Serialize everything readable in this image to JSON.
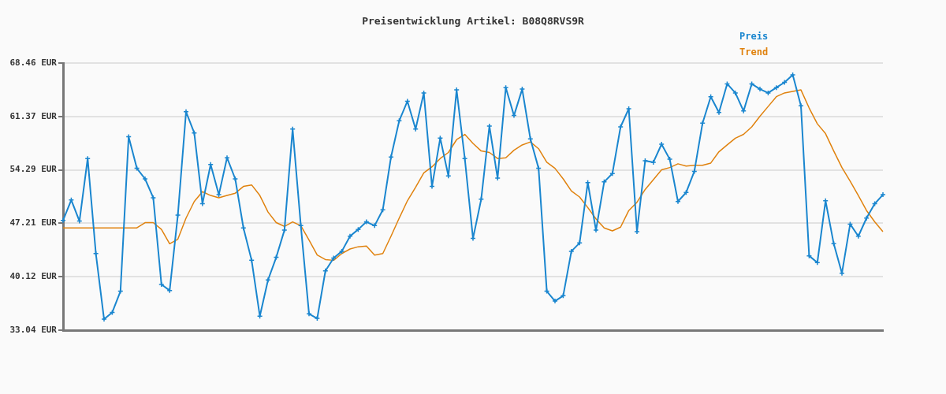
{
  "chart_data": {
    "type": "line",
    "title": "Preisentwicklung Artikel: B08Q8RVS9R",
    "categories": [
      null,
      null,
      null,
      null,
      null,
      null,
      null,
      null,
      null,
      null,
      null,
      null,
      null,
      null,
      null,
      null,
      null,
      null,
      null,
      null,
      null,
      null,
      null,
      null,
      null,
      null,
      null,
      null,
      null,
      null,
      null,
      null,
      null,
      null,
      null,
      null,
      null,
      null,
      null,
      null,
      null,
      null,
      null,
      null,
      null,
      null,
      null,
      null,
      null,
      null,
      null,
      null,
      null,
      null,
      null,
      null,
      null,
      null,
      null,
      null,
      null,
      null,
      null,
      null,
      null,
      null,
      null,
      null,
      null,
      null,
      null,
      null,
      null,
      null,
      null,
      null,
      null,
      null,
      null,
      null,
      null,
      null,
      null,
      null,
      null,
      null,
      null,
      null,
      null,
      null,
      null,
      null,
      null,
      null,
      null,
      null,
      null,
      null,
      null,
      null,
      null
    ],
    "series": [
      {
        "name": "Preis",
        "color": "#1a86cf",
        "marker": "cross",
        "values": [
          47.6,
          50.3,
          47.5,
          55.8,
          43.2,
          34.5,
          35.4,
          38.2,
          58.7,
          54.5,
          53.1,
          50.6,
          39.1,
          38.3,
          48.3,
          62.0,
          59.2,
          49.8,
          55.0,
          51.0,
          55.9,
          53.1,
          46.6,
          42.3,
          34.9,
          39.7,
          42.7,
          46.3,
          59.7,
          46.9,
          35.2,
          34.6,
          40.9,
          42.6,
          43.5,
          45.5,
          46.4,
          47.4,
          46.9,
          49.0,
          56.0,
          60.8,
          63.4,
          59.7,
          64.5,
          52.1,
          58.5,
          53.5,
          64.9,
          55.8,
          45.2,
          50.4,
          60.1,
          53.2,
          65.2,
          61.5,
          65.0,
          58.4,
          54.5,
          38.2,
          36.9,
          37.6,
          43.5,
          44.6,
          52.6,
          46.3,
          52.7,
          53.8,
          60.0,
          62.4,
          46.1,
          55.5,
          55.3,
          57.7,
          55.7,
          50.1,
          51.3,
          54.1,
          60.5,
          64.0,
          61.9,
          65.7,
          64.5,
          62.1,
          65.7,
          65.0,
          64.5,
          65.2,
          65.9,
          66.9,
          62.8,
          42.9,
          42.0,
          50.2,
          44.5,
          40.6,
          47.1,
          45.5,
          47.9,
          49.8,
          51.0
        ]
      },
      {
        "name": "Trend",
        "color": "#e0820e",
        "marker": "none",
        "values": [
          46.6,
          46.6,
          46.6,
          46.6,
          46.6,
          46.6,
          46.6,
          46.6,
          46.6,
          46.6,
          47.3,
          47.3,
          46.4,
          44.5,
          45.1,
          47.9,
          50.1,
          51.4,
          50.9,
          50.6,
          50.9,
          51.2,
          52.1,
          52.3,
          50.9,
          48.7,
          47.3,
          46.8,
          47.4,
          46.9,
          45.0,
          43.0,
          42.4,
          42.3,
          43.2,
          43.8,
          44.1,
          44.2,
          43.0,
          43.2,
          45.5,
          47.9,
          50.2,
          52.0,
          53.9,
          54.7,
          55.8,
          56.6,
          58.3,
          59.0,
          57.8,
          56.8,
          56.6,
          55.8,
          55.9,
          56.9,
          57.6,
          58.0,
          57.1,
          55.3,
          54.5,
          53.1,
          51.5,
          50.7,
          49.3,
          47.8,
          46.6,
          46.2,
          46.7,
          48.9,
          50.0,
          51.7,
          53.0,
          54.3,
          54.6,
          55.1,
          54.8,
          54.9,
          54.9,
          55.2,
          56.7,
          57.6,
          58.5,
          59.0,
          60.0,
          61.4,
          62.7,
          64.0,
          64.5,
          64.7,
          64.9,
          62.5,
          60.4,
          59.1,
          56.8,
          54.6,
          52.8,
          50.9,
          48.9,
          47.4,
          46.1
        ]
      }
    ],
    "ylim": [
      33.04,
      68.46
    ],
    "yticks": [
      {
        "value": 33.04,
        "label": "33.04 EUR"
      },
      {
        "value": 40.12,
        "label": "40.12 EUR"
      },
      {
        "value": 47.21,
        "label": "47.21 EUR"
      },
      {
        "value": 54.29,
        "label": "54.29 EUR"
      },
      {
        "value": 61.37,
        "label": "61.37 EUR"
      },
      {
        "value": 68.46,
        "label": "68.46 EUR"
      }
    ],
    "grid": "y",
    "legend": "top right",
    "line_style": "solid"
  }
}
